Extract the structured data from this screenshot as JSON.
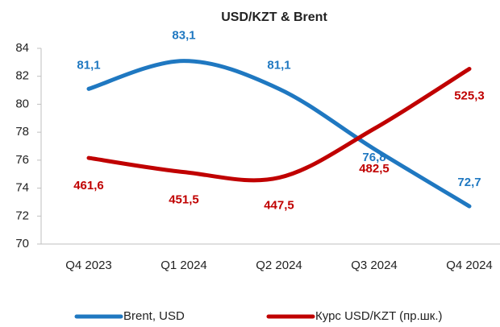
{
  "chart_data": {
    "type": "line",
    "title": "USD/KZT & Brent",
    "categories": [
      "Q4 2023",
      "Q1 2024",
      "Q2 2024",
      "Q3 2024",
      "Q4 2024"
    ],
    "series": [
      {
        "name": "Brent, USD",
        "color": "#1f78c1",
        "values": [
          81.1,
          83.1,
          81.1,
          76.8,
          72.7
        ],
        "value_labels": [
          "81,1",
          "83,1",
          "81,1",
          "76,8",
          "72,7"
        ]
      },
      {
        "name": "Курс USD/KZT (пр.шк.)",
        "color": "#c00000",
        "axis": "y2",
        "values": [
          461.6,
          451.5,
          447.5,
          482.5,
          525.3
        ],
        "value_labels": [
          "461,6",
          "451,5",
          "447,5",
          "482,5",
          "525,3"
        ]
      }
    ],
    "ylim": [
      70,
      84
    ],
    "yticks": [
      70,
      72,
      74,
      76,
      78,
      80,
      82,
      84
    ],
    "y2lim": [
      400,
      540
    ],
    "legend": "bottom"
  }
}
